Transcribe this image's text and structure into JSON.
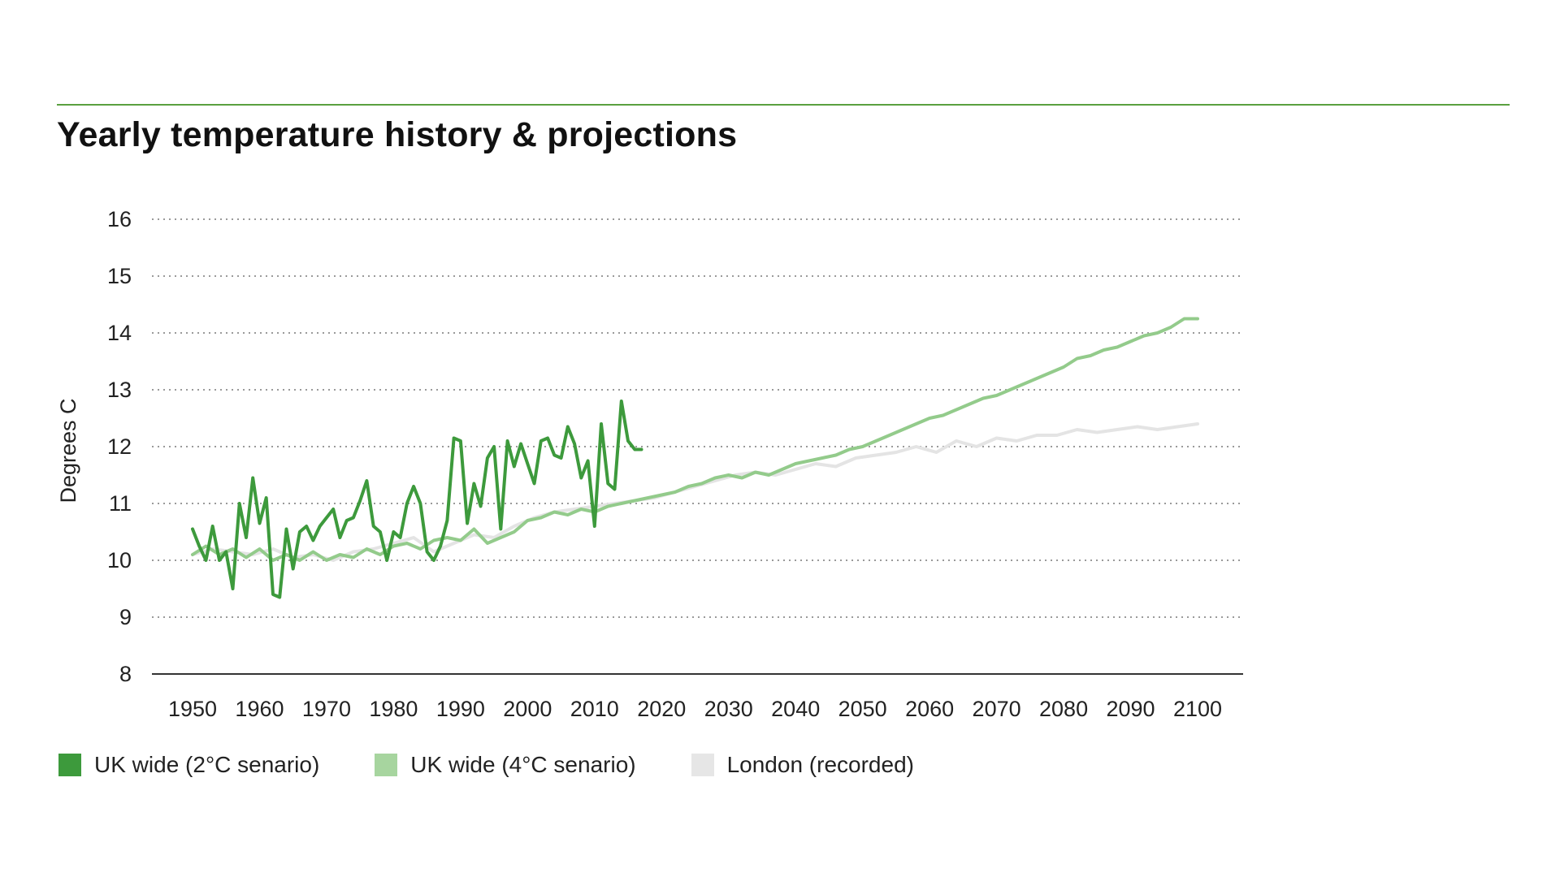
{
  "title": "Yearly temperature history & projections",
  "colors": {
    "rule": "#5aa03f",
    "series_2c": "#3d9a3c",
    "series_4c": "#93cb8b",
    "london": "#e4e4e4",
    "grid": "#9a9a9a",
    "axis": "#333333"
  },
  "legend": [
    {
      "label": "UK wide (2°C senario)",
      "color": "#3d9a3c"
    },
    {
      "label": "UK wide (4°C senario)",
      "color": "#a7d59f"
    },
    {
      "label": "London (recorded)",
      "color": "#e6e6e6"
    }
  ],
  "chart_data": {
    "type": "line",
    "title": "Yearly temperature history & projections",
    "xlabel": "",
    "ylabel": "Degrees C",
    "xlim": [
      1950,
      2100
    ],
    "ylim": [
      8,
      16
    ],
    "x_ticks": [
      1950,
      1960,
      1970,
      1980,
      1990,
      2000,
      2010,
      2020,
      2030,
      2040,
      2050,
      2060,
      2070,
      2080,
      2090,
      2100
    ],
    "y_ticks": [
      8,
      9,
      10,
      11,
      12,
      13,
      14,
      15,
      16
    ],
    "grid": "horizontal-dotted",
    "legend_position": "bottom-left",
    "series": [
      {
        "name": "London (recorded)",
        "color": "#e4e4e4",
        "x": [
          1950,
          1953,
          1956,
          1959,
          1962,
          1965,
          1968,
          1971,
          1974,
          1977,
          1980,
          1983,
          1986,
          1989,
          1992,
          1995,
          1998,
          2001,
          2004,
          2007,
          2010,
          2013,
          2016,
          2019,
          2022,
          2025,
          2028,
          2031,
          2034,
          2037,
          2040,
          2043,
          2046,
          2049,
          2052,
          2055,
          2058,
          2061,
          2064,
          2067,
          2070,
          2073,
          2076,
          2079,
          2082,
          2085,
          2088,
          2091,
          2094,
          2097,
          2100
        ],
        "y": [
          10.1,
          10.2,
          10.15,
          10.1,
          10.2,
          10.05,
          10.1,
          10.0,
          10.15,
          10.2,
          10.3,
          10.4,
          10.15,
          10.3,
          10.45,
          10.4,
          10.6,
          10.75,
          10.85,
          10.9,
          10.95,
          11.0,
          11.05,
          11.1,
          11.2,
          11.3,
          11.4,
          11.5,
          11.55,
          11.5,
          11.6,
          11.7,
          11.65,
          11.8,
          11.85,
          11.9,
          12.0,
          11.9,
          12.1,
          12.0,
          12.15,
          12.1,
          12.2,
          12.2,
          12.3,
          12.25,
          12.3,
          12.35,
          12.3,
          12.35,
          12.4
        ]
      },
      {
        "name": "UK wide (4°C senario)",
        "color": "#93cb8b",
        "x": [
          1950,
          1952,
          1954,
          1956,
          1958,
          1960,
          1962,
          1964,
          1966,
          1968,
          1970,
          1972,
          1974,
          1976,
          1978,
          1980,
          1982,
          1984,
          1986,
          1988,
          1990,
          1992,
          1994,
          1996,
          1998,
          2000,
          2002,
          2004,
          2006,
          2008,
          2010,
          2012,
          2014,
          2016,
          2018,
          2020,
          2022,
          2024,
          2026,
          2028,
          2030,
          2032,
          2034,
          2036,
          2038,
          2040,
          2042,
          2044,
          2046,
          2048,
          2050,
          2052,
          2054,
          2056,
          2058,
          2060,
          2062,
          2064,
          2066,
          2068,
          2070,
          2072,
          2074,
          2076,
          2078,
          2080,
          2082,
          2084,
          2086,
          2088,
          2090,
          2092,
          2094,
          2096,
          2098,
          2100
        ],
        "y": [
          10.1,
          10.25,
          10.1,
          10.2,
          10.05,
          10.2,
          10.0,
          10.1,
          10.0,
          10.15,
          10.0,
          10.1,
          10.05,
          10.2,
          10.1,
          10.25,
          10.3,
          10.2,
          10.35,
          10.4,
          10.35,
          10.55,
          10.3,
          10.4,
          10.5,
          10.7,
          10.75,
          10.85,
          10.8,
          10.9,
          10.85,
          10.95,
          11.0,
          11.05,
          11.1,
          11.15,
          11.2,
          11.3,
          11.35,
          11.45,
          11.5,
          11.45,
          11.55,
          11.5,
          11.6,
          11.7,
          11.75,
          11.8,
          11.85,
          11.95,
          12.0,
          12.1,
          12.2,
          12.3,
          12.4,
          12.5,
          12.55,
          12.65,
          12.75,
          12.85,
          12.9,
          13.0,
          13.1,
          13.2,
          13.3,
          13.4,
          13.55,
          13.6,
          13.7,
          13.75,
          13.85,
          13.95,
          14.0,
          14.1,
          14.25,
          14.25
        ]
      },
      {
        "name": "UK wide (2°C senario)",
        "color": "#3d9a3c",
        "x": [
          1950,
          1951,
          1952,
          1953,
          1954,
          1955,
          1956,
          1957,
          1958,
          1959,
          1960,
          1961,
          1962,
          1963,
          1964,
          1965,
          1966,
          1967,
          1968,
          1969,
          1970,
          1971,
          1972,
          1973,
          1974,
          1975,
          1976,
          1977,
          1978,
          1979,
          1980,
          1981,
          1982,
          1983,
          1984,
          1985,
          1986,
          1987,
          1988,
          1989,
          1990,
          1991,
          1992,
          1993,
          1994,
          1995,
          1996,
          1997,
          1998,
          1999,
          2000,
          2001,
          2002,
          2003,
          2004,
          2005,
          2006,
          2007,
          2008,
          2009,
          2010,
          2011,
          2012,
          2013,
          2014,
          2015,
          2016,
          2017
        ],
        "y": [
          10.55,
          10.25,
          10.0,
          10.6,
          10.0,
          10.15,
          9.5,
          11.0,
          10.4,
          11.45,
          10.65,
          11.1,
          9.4,
          9.35,
          10.55,
          9.85,
          10.5,
          10.6,
          10.35,
          10.6,
          10.75,
          10.9,
          10.4,
          10.7,
          10.75,
          11.05,
          11.4,
          10.6,
          10.5,
          10.0,
          10.5,
          10.4,
          11.0,
          11.3,
          11.0,
          10.15,
          10.0,
          10.25,
          10.7,
          12.15,
          12.1,
          10.65,
          11.35,
          10.95,
          11.8,
          12.0,
          10.55,
          12.1,
          11.65,
          12.05,
          11.7,
          11.35,
          12.1,
          12.15,
          11.85,
          11.8,
          12.35,
          12.05,
          11.45,
          11.75,
          10.6,
          12.4,
          11.35,
          11.25,
          12.8,
          12.1,
          11.95,
          11.95
        ]
      }
    ]
  }
}
